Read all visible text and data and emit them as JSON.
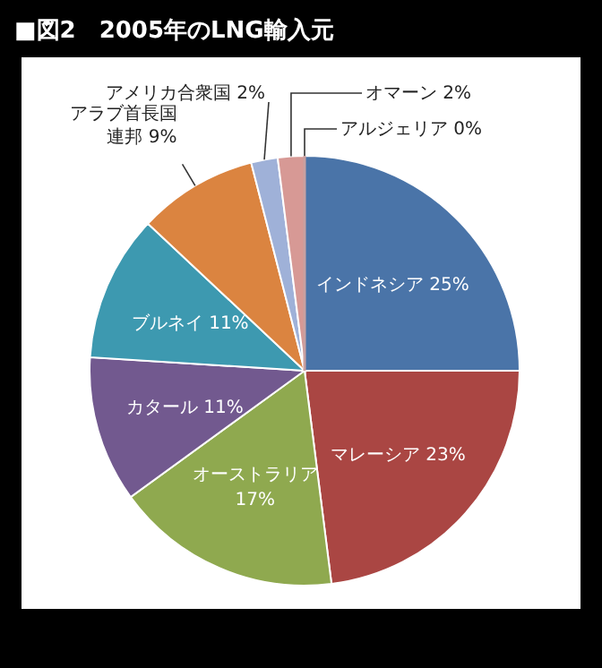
{
  "chart_data": {
    "type": "pie",
    "title": "■図2　2005年のLNG輸入元",
    "categories": [
      "インドネシア",
      "マレーシア",
      "オーストラリア",
      "カタール",
      "ブルネイ",
      "アラブ首長国連邦",
      "アメリカ合衆国",
      "オマーン",
      "アルジェリア"
    ],
    "values": [
      25,
      23,
      17,
      11,
      11,
      9,
      2,
      2,
      0
    ],
    "value_labels": [
      "25%",
      "23%",
      "17%",
      "11%",
      "11%",
      "9%",
      "2%",
      "2%",
      "0%"
    ],
    "colors": [
      "#4a74a8",
      "#aa4643",
      "#8fa94f",
      "#72598f",
      "#3d99b0",
      "#db8440",
      "#9fb1d8",
      "#d79995",
      "#c9a0a0"
    ]
  }
}
